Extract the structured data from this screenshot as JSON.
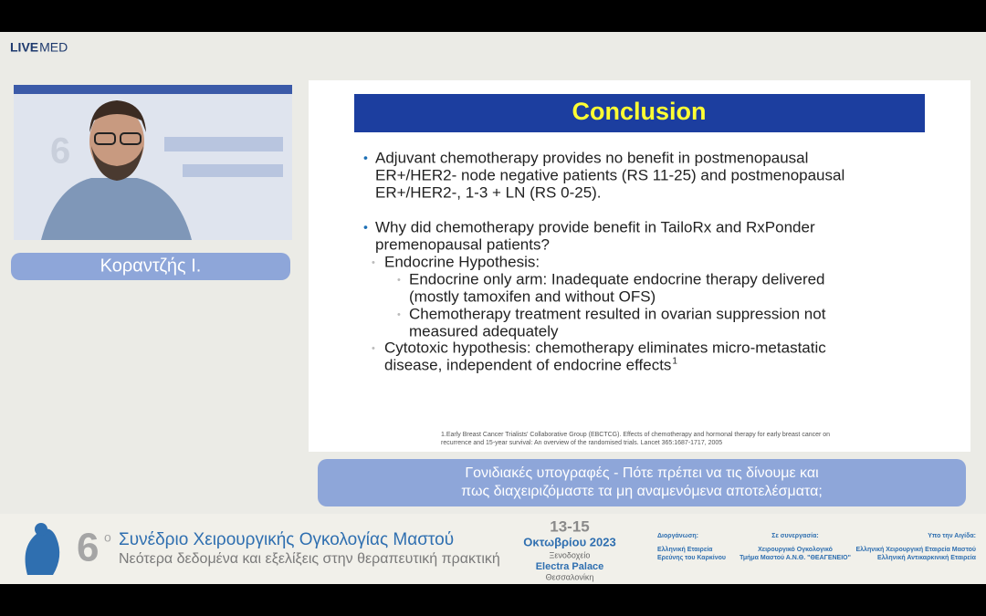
{
  "logo": {
    "live": "LIVE",
    "med": "MED"
  },
  "speaker": {
    "name": "Κοραντζής Ι."
  },
  "slide": {
    "title": "Conclusion",
    "bullets": [
      {
        "level": 1,
        "lines": [
          "Adjuvant chemotherapy provides no benefit in postmenopausal",
          "ER+/HER2- node negative patients (RS 11-25) and postmenopausal",
          "ER+/HER2-, 1-3 + LN (RS 0-25)."
        ]
      },
      {
        "level": 1,
        "lines": [
          "Why did chemotherapy provide benefit in TailoRx and RxPonder",
          "premenopausal patients?"
        ]
      },
      {
        "level": 2,
        "lines": [
          "Endocrine Hypothesis:"
        ]
      },
      {
        "level": 3,
        "lines": [
          "Endocrine only arm:  Inadequate endocrine therapy delivered",
          "(mostly tamoxifen and without OFS)"
        ]
      },
      {
        "level": 3,
        "lines": [
          "Chemotherapy treatment resulted in ovarian suppression not",
          "measured adequately"
        ]
      },
      {
        "level": 2,
        "lines": [
          "Cytotoxic hypothesis:  chemotherapy eliminates micro-metastatic",
          "disease, independent of endocrine effects"
        ],
        "sup": "1"
      }
    ],
    "footnote": [
      "1.Early Breast Cancer Trialists' Collaborative Group (EBCTCG). Effects of chemotherapy and hormonal therapy for early breast cancer on",
      "recurrence and 15-year survival: An overview of the randomised trials. Lancet 365:1687-1717, 2005"
    ]
  },
  "caption": [
    "Γονιδιακές υπογραφές - Πότε πρέπει να τις δίνουμε και",
    "πως διαχειριζόμαστε τα μη αναμενόμενα αποτελέσματα;"
  ],
  "banner": {
    "number": "6",
    "ordinal": "ο",
    "title": "Συνέδριο Χειρουργικής Ογκολογίας Μαστού",
    "subtitle": "Νεότερα δεδομένα και εξελίξεις στην θεραπευτική πρακτική",
    "dates": "13-15",
    "month": "Οκτωβρίου 2023",
    "venue": [
      "Ξενοδοχείο",
      "Electra Palace",
      "Θεσσαλονίκη"
    ],
    "organizer": {
      "label": "Διοργάνωση:",
      "lines": [
        "Ελληνική Εταιρεία",
        "Ερεύνης του Καρκίνου"
      ]
    },
    "partner": {
      "label": "Σε συνεργασία:",
      "lines": [
        "Χειρουργικό Ογκολογικό",
        "Τμήμα Μαστού Α.Ν.Θ. \"ΘΕΑΓΕΝΕΙΟ\""
      ]
    },
    "auspices": {
      "label": "Υπο την Αιγίδα:",
      "lines": [
        "Ελληνική Χειρουργική Εταιρεία Μαστού",
        "Ελληνική Αντικαρκινική Εταιρεία"
      ]
    }
  }
}
